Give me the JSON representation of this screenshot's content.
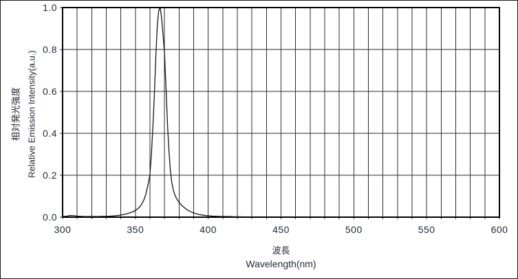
{
  "figure": {
    "background": "#ffffff",
    "border_color": "#1a1a1a"
  },
  "y_axis": {
    "title_ja": "相対発光強度",
    "title_en": "Relative Emission Intensity(a.u.)",
    "tick_labels": [
      "0.0",
      "0.2",
      "0.4",
      "0.6",
      "0.8",
      "1.0"
    ]
  },
  "x_axis": {
    "title_ja": "波長",
    "title_en": "Wavelength(nm)",
    "tick_labels": [
      "300",
      "350",
      "400",
      "450",
      "500",
      "550",
      "600"
    ]
  },
  "chart_data": {
    "type": "line",
    "title": "",
    "xlabel": "波長 / Wavelength(nm)",
    "ylabel": "相対発光強度 / Relative Emission Intensity(a.u.)",
    "xlim": [
      300,
      600
    ],
    "ylim": [
      0.0,
      1.0
    ],
    "x_major_ticks": [
      300,
      350,
      400,
      450,
      500,
      550,
      600
    ],
    "x_grid_step": 10,
    "y_ticks": [
      0.0,
      0.2,
      0.4,
      0.6,
      0.8,
      1.0
    ],
    "grid": true,
    "legend_position": "none",
    "peak_wavelength_nm": 367,
    "peak_intensity": 1.0,
    "colors": {
      "grid": "#2b2b2b",
      "plot_border": "#000000",
      "curve": "#141414",
      "text": "#222a36"
    },
    "series": [
      {
        "name": "relative-emission-intensity",
        "color": "#141414",
        "points": [
          [
            300,
            0.003
          ],
          [
            303,
            0.005
          ],
          [
            305,
            0.008
          ],
          [
            308,
            0.007
          ],
          [
            310,
            0.005
          ],
          [
            313,
            0.004
          ],
          [
            315,
            0.003
          ],
          [
            318,
            0.003
          ],
          [
            320,
            0.003
          ],
          [
            323,
            0.003
          ],
          [
            325,
            0.003
          ],
          [
            328,
            0.004
          ],
          [
            330,
            0.004
          ],
          [
            333,
            0.005
          ],
          [
            335,
            0.006
          ],
          [
            338,
            0.008
          ],
          [
            340,
            0.01
          ],
          [
            342,
            0.013
          ],
          [
            344,
            0.016
          ],
          [
            346,
            0.02
          ],
          [
            348,
            0.025
          ],
          [
            350,
            0.032
          ],
          [
            352,
            0.042
          ],
          [
            354,
            0.058
          ],
          [
            356,
            0.085
          ],
          [
            357,
            0.105
          ],
          [
            358,
            0.135
          ],
          [
            359,
            0.165
          ],
          [
            360,
            0.205
          ],
          [
            361,
            0.3
          ],
          [
            362,
            0.43
          ],
          [
            363,
            0.58
          ],
          [
            364,
            0.76
          ],
          [
            365,
            0.91
          ],
          [
            366,
            0.985
          ],
          [
            367,
            1.0
          ],
          [
            368,
            0.95
          ],
          [
            369,
            0.87
          ],
          [
            370,
            0.78
          ],
          [
            371,
            0.62
          ],
          [
            372,
            0.45
          ],
          [
            373,
            0.32
          ],
          [
            374,
            0.225
          ],
          [
            375,
            0.165
          ],
          [
            376,
            0.13
          ],
          [
            377,
            0.108
          ],
          [
            378,
            0.092
          ],
          [
            380,
            0.07
          ],
          [
            382,
            0.055
          ],
          [
            384,
            0.043
          ],
          [
            386,
            0.033
          ],
          [
            388,
            0.026
          ],
          [
            390,
            0.02
          ],
          [
            392,
            0.016
          ],
          [
            394,
            0.012
          ],
          [
            396,
            0.01
          ],
          [
            398,
            0.008
          ],
          [
            400,
            0.007
          ],
          [
            403,
            0.005
          ],
          [
            406,
            0.004
          ],
          [
            410,
            0.003
          ],
          [
            414,
            0.003
          ],
          [
            418,
            0.002
          ],
          [
            423,
            0.002
          ]
        ]
      }
    ]
  }
}
